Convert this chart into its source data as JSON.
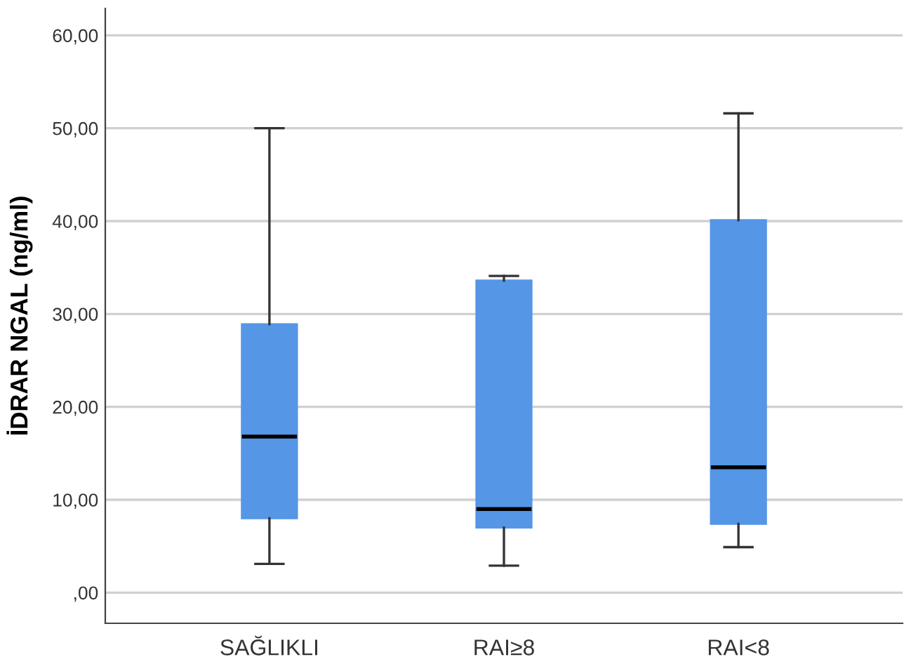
{
  "chart_data": {
    "type": "box",
    "ylabel": "İDRAR NGAL (ng/ml)",
    "categories": [
      "SAĞLIKLI",
      "RAI≥8",
      "RAI<8"
    ],
    "boxes": [
      {
        "low": 3.1,
        "q1": 8.0,
        "median": 16.8,
        "q3": 28.9,
        "high": 50.0
      },
      {
        "low": 2.9,
        "q1": 7.0,
        "median": 9.0,
        "q3": 33.6,
        "high": 34.1
      },
      {
        "low": 4.9,
        "q1": 7.4,
        "median": 13.5,
        "q3": 40.1,
        "high": 51.6
      }
    ],
    "color": "#5596e6",
    "ylim": [
      -3.3,
      62.9
    ],
    "yticks": [
      {
        "value": 0,
        "label": ",00"
      },
      {
        "value": 10,
        "label": "10,00"
      },
      {
        "value": 20,
        "label": "20,00"
      },
      {
        "value": 30,
        "label": "30,00"
      },
      {
        "value": 40,
        "label": "40,00"
      },
      {
        "value": 50,
        "label": "50,00"
      },
      {
        "value": 60,
        "label": "60,00"
      }
    ],
    "grid": "y"
  }
}
